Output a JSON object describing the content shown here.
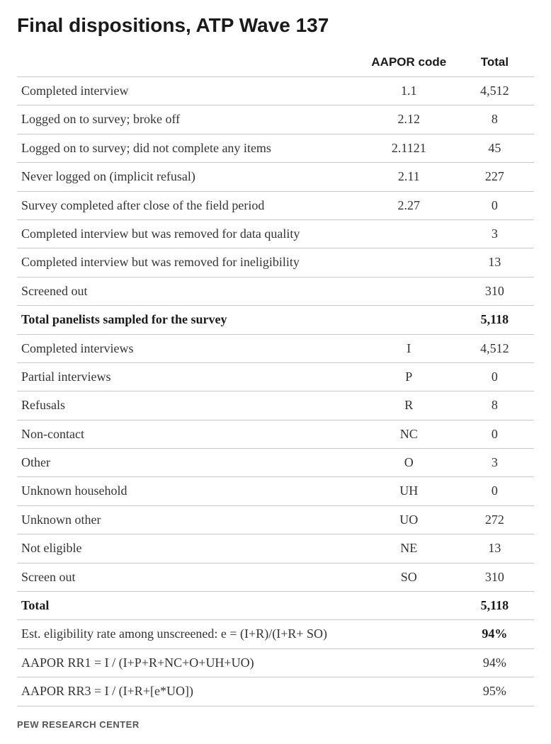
{
  "title": "Final dispositions, ATP Wave 137",
  "columns": {
    "label": "",
    "code": "AAPOR code",
    "total": "Total"
  },
  "section1": [
    {
      "label": "Completed interview",
      "code": "1.1",
      "total": "4,512"
    },
    {
      "label": "Logged on to survey; broke off",
      "code": "2.12",
      "total": "8"
    },
    {
      "label": "Logged on to survey; did not complete any items",
      "code": "2.1121",
      "total": "45"
    },
    {
      "label": "Never logged on (implicit refusal)",
      "code": "2.11",
      "total": "227"
    },
    {
      "label": "Survey completed after close of the field period",
      "code": "2.27",
      "total": "0"
    },
    {
      "label": "Completed interview but was removed for data quality",
      "code": "",
      "total": "3"
    },
    {
      "label": "Completed interview but was removed for ineligibility",
      "code": "",
      "total": "13"
    },
    {
      "label": "Screened out",
      "code": "",
      "total": "310"
    }
  ],
  "subtotal1": {
    "label": "Total panelists sampled for the survey",
    "code": "",
    "total": "5,118"
  },
  "section2": [
    {
      "label": "Completed interviews",
      "code": "I",
      "total": "4,512"
    },
    {
      "label": "Partial interviews",
      "code": "P",
      "total": "0"
    },
    {
      "label": "Refusals",
      "code": "R",
      "total": "8"
    },
    {
      "label": "Non-contact",
      "code": "NC",
      "total": "0"
    },
    {
      "label": "Other",
      "code": "O",
      "total": "3"
    },
    {
      "label": "Unknown household",
      "code": "UH",
      "total": "0"
    },
    {
      "label": "Unknown other",
      "code": "UO",
      "total": "272"
    },
    {
      "label": "Not eligible",
      "code": "NE",
      "total": "13"
    },
    {
      "label": "Screen out",
      "code": "SO",
      "total": "310"
    }
  ],
  "subtotal2": {
    "label": "Total",
    "code": "",
    "total": "5,118"
  },
  "section3": [
    {
      "label": "Est. eligibility rate among unscreened: e = (I+R)/(I+R+ SO)",
      "code": "",
      "total": "94%",
      "boldTotal": true
    },
    {
      "label": "AAPOR RR1 = I / (I+P+R+NC+O+UH+UO)",
      "code": "",
      "total": "94%"
    },
    {
      "label": "AAPOR RR3 = I / (I+R+[e*UO])",
      "code": "",
      "total": "95%"
    }
  ],
  "source": "PEW RESEARCH CENTER",
  "styling": {
    "title_fontsize": 28,
    "title_fontweight": "bold",
    "title_fontfamily": "Arial",
    "body_fontfamily": "Georgia",
    "body_fontsize": 18,
    "header_fontsize": 17,
    "source_fontsize": 13,
    "text_color": "#333333",
    "heading_color": "#1a1a1a",
    "border_color": "#c9c9c9",
    "background_color": "#ffffff",
    "source_color": "#555555",
    "col_widths": {
      "label": 480,
      "code": 120,
      "total": 100
    }
  }
}
